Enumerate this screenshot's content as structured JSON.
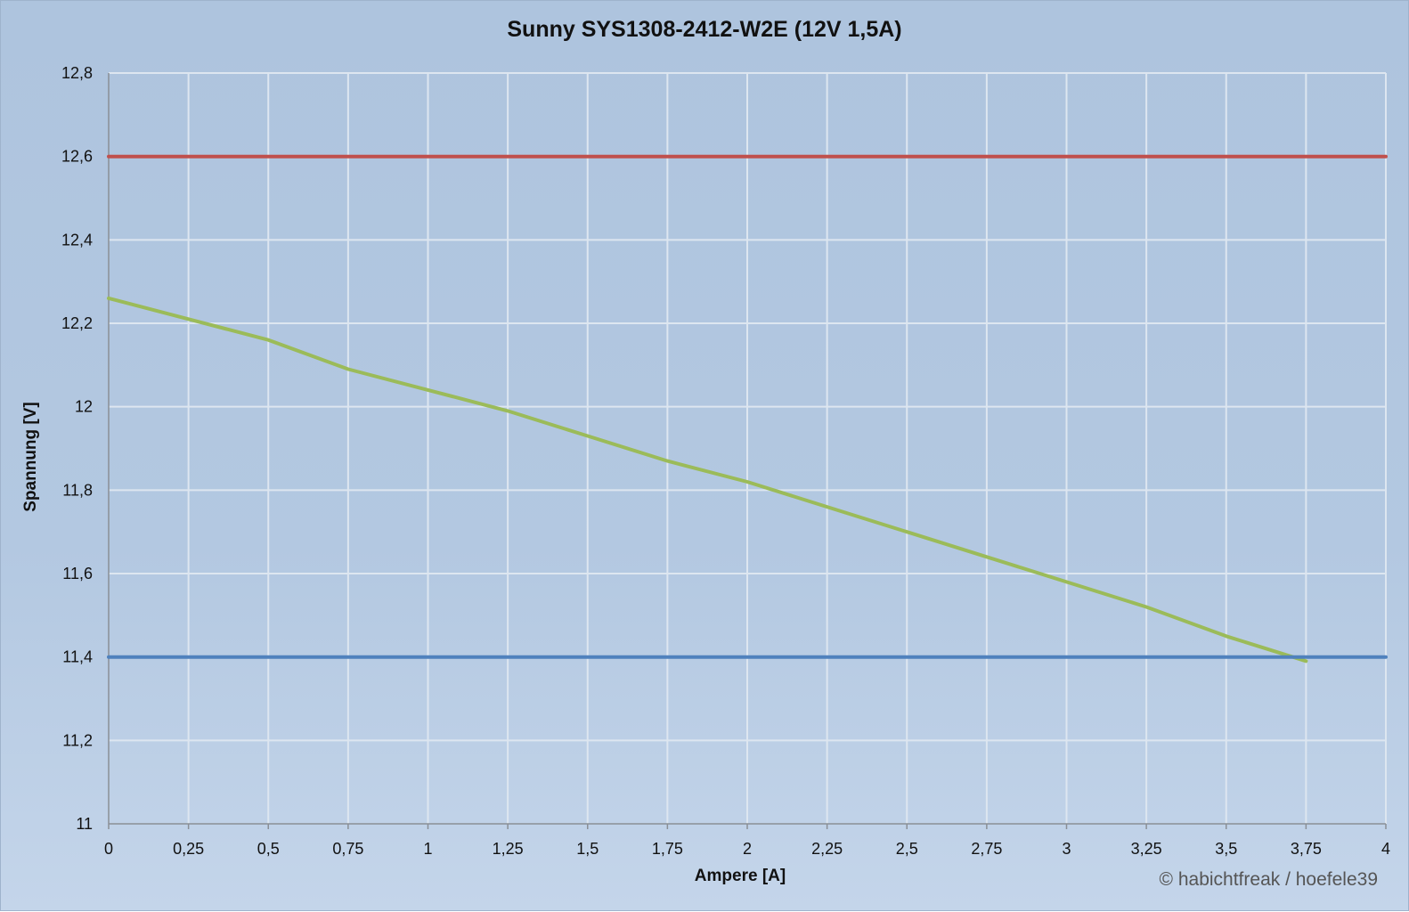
{
  "title": "Sunny SYS1308-2412-W2E (12V 1,5A)",
  "copyright": "© habichtfreak / hoefele39",
  "chart_data": {
    "type": "line",
    "title": "Sunny SYS1308-2412-W2E (12V 1,5A)",
    "xlabel": "Ampere [A]",
    "ylabel": "Spannung [V]",
    "xlim": [
      0,
      4
    ],
    "ylim": [
      11,
      12.8
    ],
    "x_ticks": [
      "0",
      "0,25",
      "0,5",
      "0,75",
      "1",
      "1,25",
      "1,5",
      "1,75",
      "2",
      "2,25",
      "2,5",
      "2,75",
      "3",
      "3,25",
      "3,5",
      "3,75",
      "4"
    ],
    "y_ticks": [
      "11",
      "11,2",
      "11,4",
      "11,6",
      "11,8",
      "12",
      "12,2",
      "12,4",
      "12,6",
      "12,8"
    ],
    "grid": true,
    "legend": "none",
    "series": [
      {
        "color": "#9bbb59",
        "x": [
          0,
          0.25,
          0.5,
          0.75,
          1,
          1.25,
          1.5,
          1.75,
          2,
          2.25,
          2.5,
          2.75,
          3,
          3.25,
          3.5,
          3.75
        ],
        "y": [
          12.26,
          12.21,
          12.16,
          12.09,
          12.04,
          11.99,
          11.93,
          11.87,
          11.82,
          11.76,
          11.7,
          11.64,
          11.58,
          11.52,
          11.45,
          11.39
        ]
      },
      {
        "color": "#c0504d",
        "x": [
          0,
          4
        ],
        "y": [
          12.6,
          12.6
        ]
      },
      {
        "color": "#4f81bd",
        "x": [
          0,
          4
        ],
        "y": [
          11.4,
          11.4
        ]
      }
    ]
  }
}
